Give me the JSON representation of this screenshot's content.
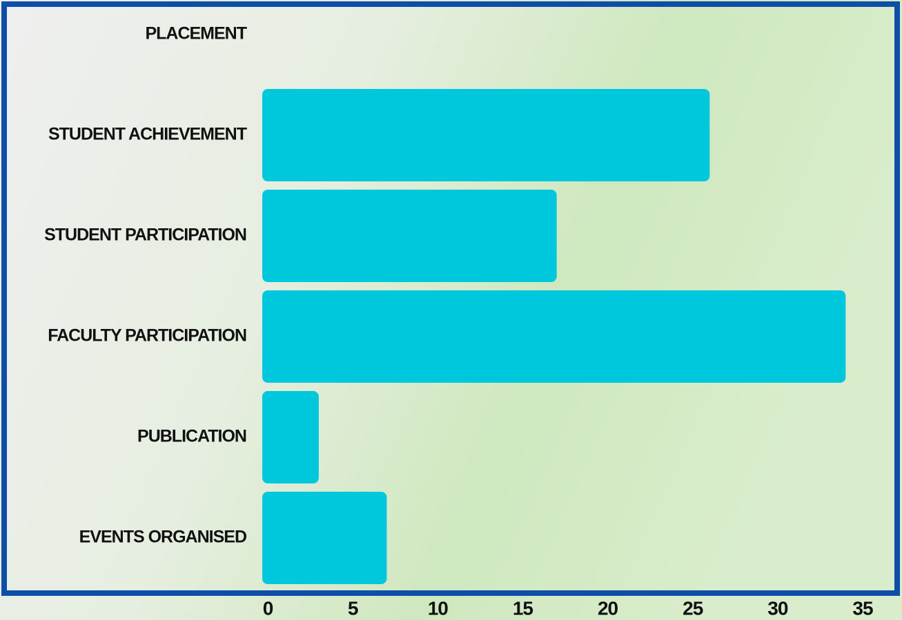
{
  "chart_data": {
    "type": "bar",
    "orientation": "horizontal",
    "categories": [
      "PLACEMENT",
      "STUDENT ACHIEVEMENT",
      "STUDENT PARTICIPATION",
      "FACULTY PARTICIPATION",
      "PUBLICATION",
      "EVENTS ORGANISED"
    ],
    "values": [
      0,
      26,
      17,
      34,
      3,
      7
    ],
    "color": "#00c8dc",
    "xlim": [
      0,
      35
    ],
    "xticks": [
      0,
      5,
      10,
      15,
      20,
      25,
      30,
      35
    ]
  }
}
